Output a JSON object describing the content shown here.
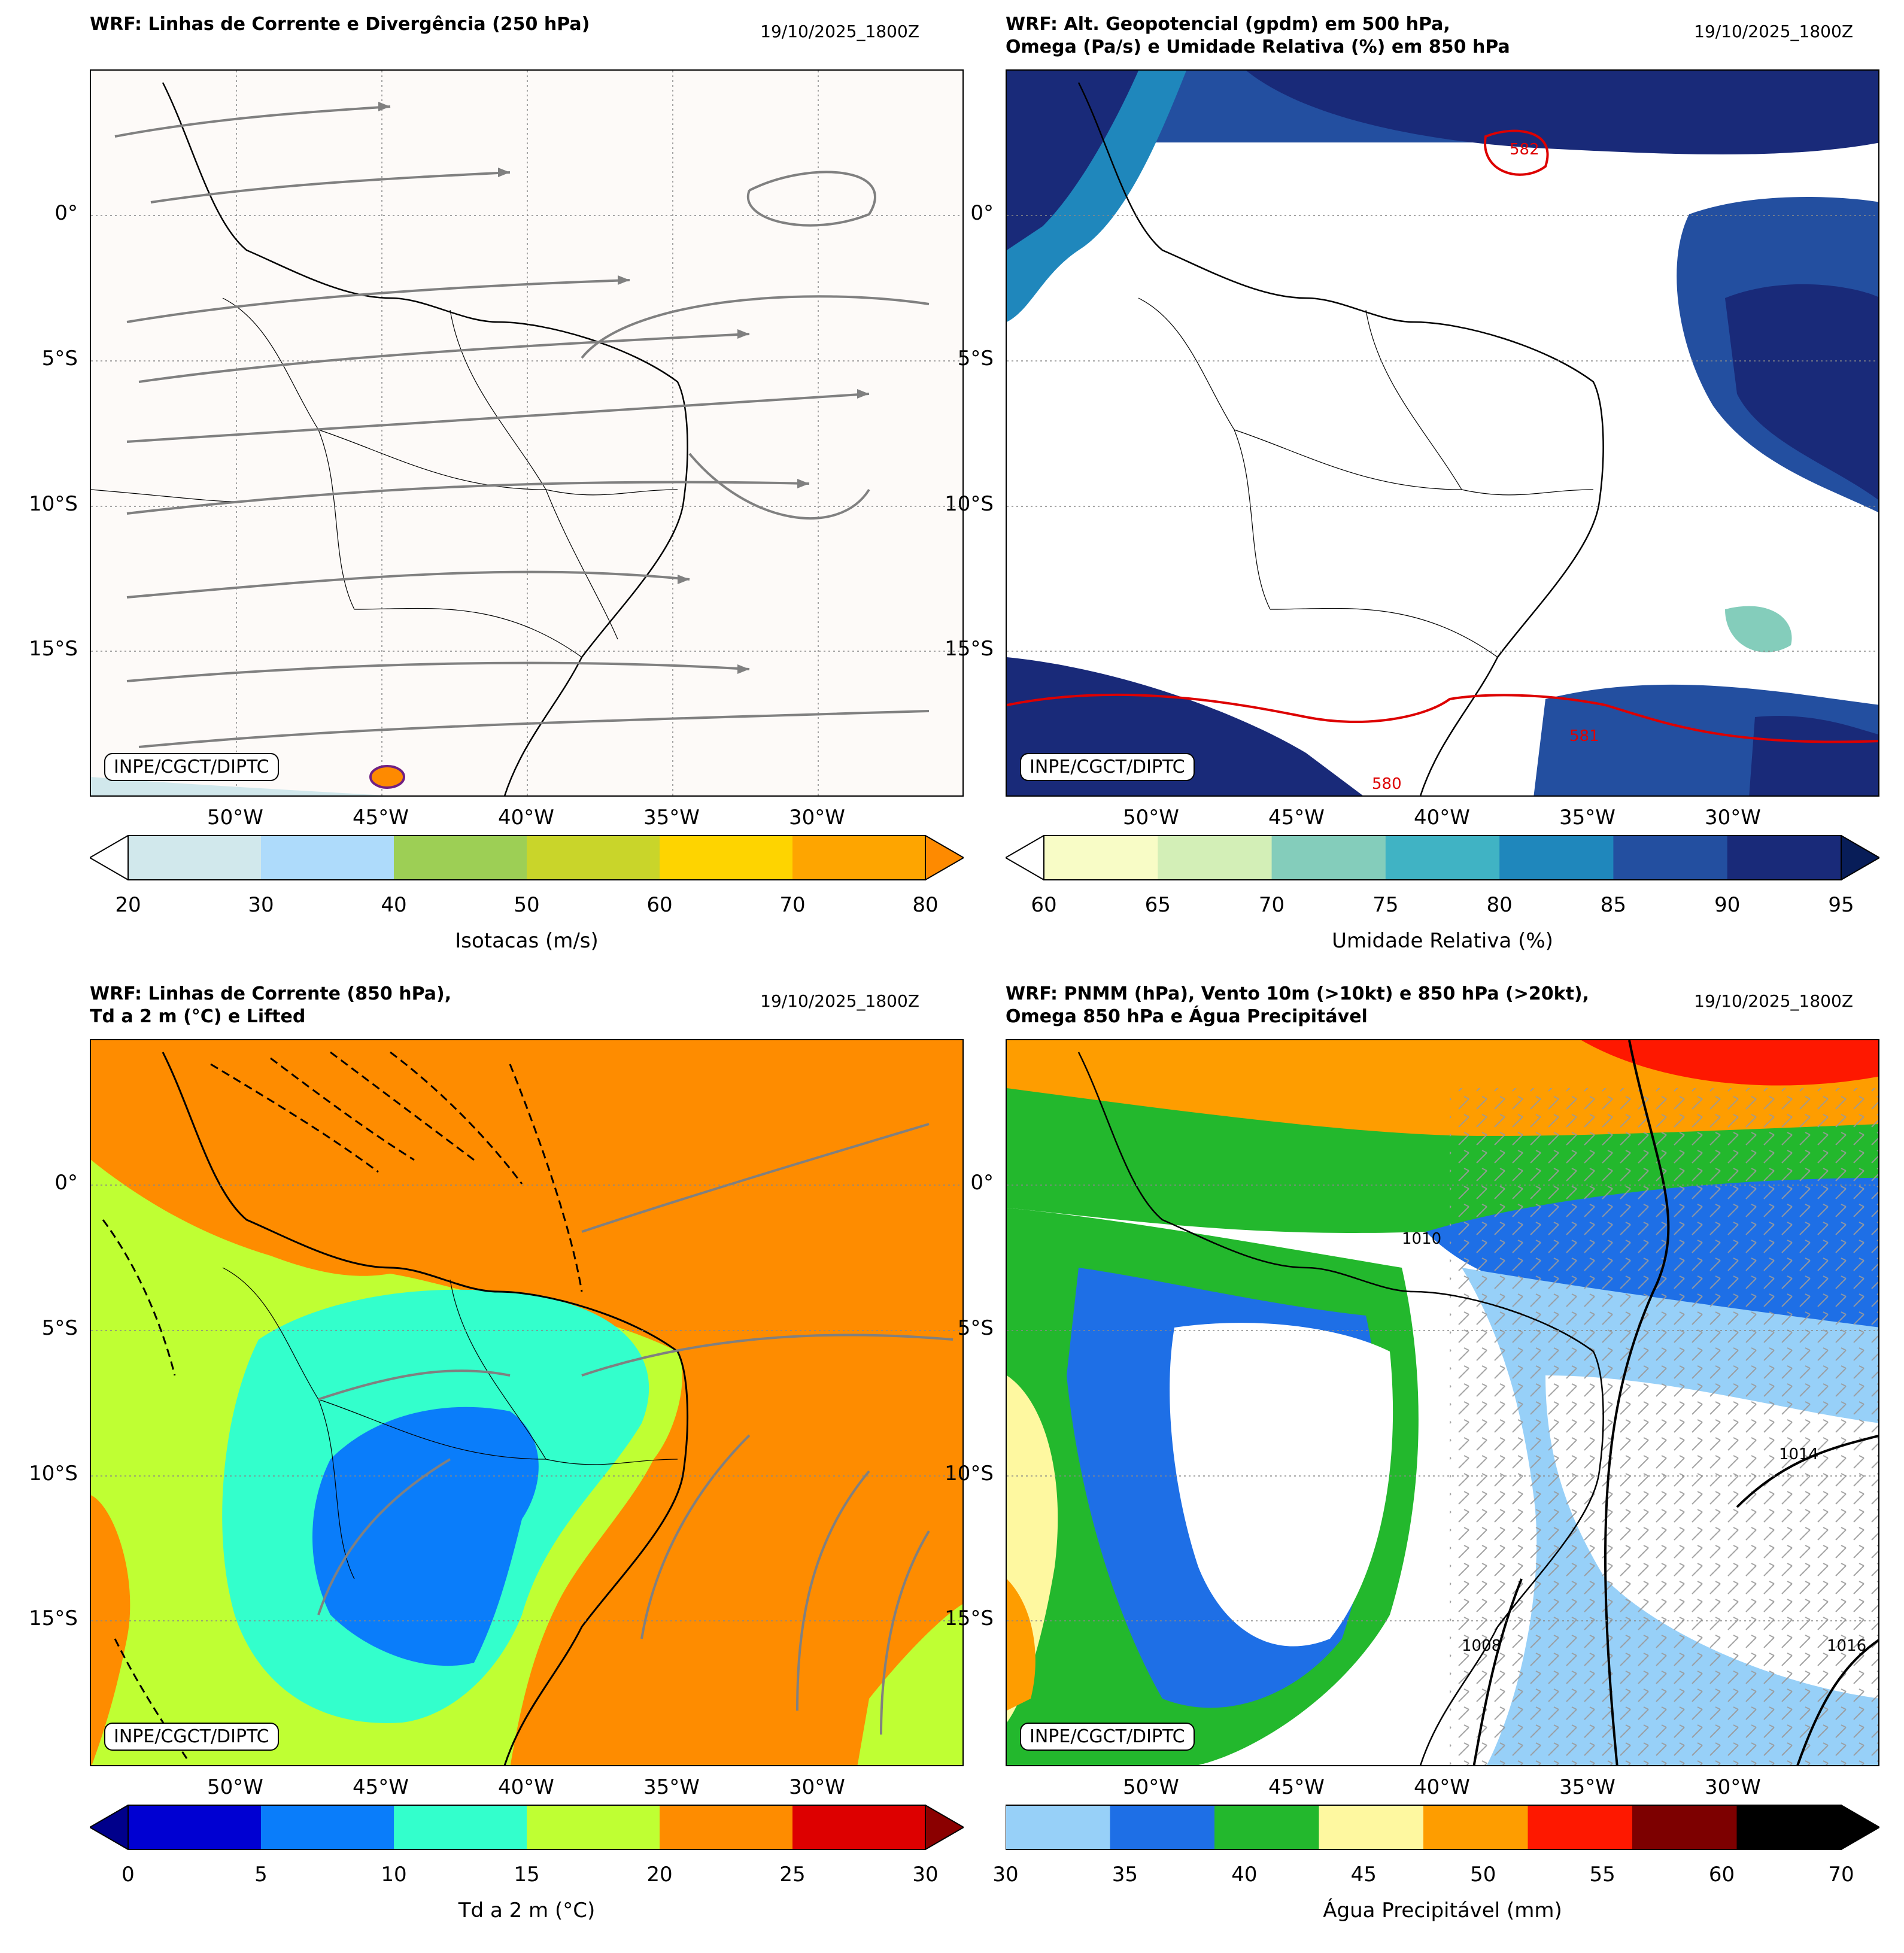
{
  "credit": "INPE/CGCT/DIPTC",
  "lat_labels": [
    "0°",
    "5°S",
    "10°S",
    "15°S"
  ],
  "lon_labels": [
    "50°W",
    "45°W",
    "40°W",
    "35°W",
    "30°W"
  ],
  "panels": [
    {
      "title": "WRF: Linhas de Corrente e Divergência (250 hPa)",
      "date": "19/10/2025_1800Z",
      "colorbar": {
        "label": "Isotacas (m/s)",
        "ticks": [
          "20",
          "30",
          "40",
          "50",
          "60",
          "70",
          "80"
        ],
        "colors": [
          "#d1e8ec",
          "#aedbfb",
          "#9dcf55",
          "#c9d52a",
          "#fed400",
          "#fea500"
        ],
        "extend": "both",
        "under": "#ffffff",
        "over": "#fe8a00"
      },
      "map": {
        "background": "#fdfaf8",
        "style": "streamlines"
      }
    },
    {
      "title": "WRF: Alt. Geopotencial (gpdm) em 500 hPa,\nOmega (Pa/s) e Umidade Relativa (%) em 850 hPa",
      "date": "19/10/2025_1800Z",
      "colorbar": {
        "label": "Umidade Relativa (%)",
        "ticks": [
          "60",
          "65",
          "70",
          "75",
          "80",
          "85",
          "90",
          "95"
        ],
        "colors": [
          "#f8fcc6",
          "#d3efb7",
          "#84cdbb",
          "#40b3c4",
          "#1f87bc",
          "#234fa0",
          "#192a79"
        ],
        "extend": "both",
        "under": "#ffffff",
        "over": "#081d58"
      },
      "map": {
        "background": "#ffffff",
        "style": "humidity",
        "contour_labels": [
          "582",
          "580",
          "581"
        ]
      }
    },
    {
      "title": "WRF: Linhas de Corrente (850 hPa),\nTd a 2 m (°C) e Lifted",
      "date": "19/10/2025_1800Z",
      "colorbar": {
        "label": "Td a 2 m (°C)",
        "ticks": [
          "0",
          "5",
          "10",
          "15",
          "20",
          "25",
          "30"
        ],
        "colors": [
          "#0000d2",
          "#0a7dfa",
          "#33ffcc",
          "#bfff33",
          "#fe8c00",
          "#dd0000"
        ],
        "extend": "both",
        "under": "#00008b",
        "over": "#8b0000"
      },
      "map": {
        "background": "#fe8c00",
        "style": "dewpoint"
      }
    },
    {
      "title": "WRF: PNMM (hPa), Vento 10m (>10kt) e 850 hPa (>20kt),\nOmega 850 hPa e Água Precipitável",
      "date": "19/10/2025_1800Z",
      "colorbar": {
        "label": "Água Precipitável (mm)",
        "ticks": [
          "30",
          "35",
          "40",
          "45",
          "50",
          "55",
          "60",
          "70"
        ],
        "colors": [
          "#97d0f8",
          "#1e6fe6",
          "#23b82d",
          "#fef8a0",
          "#fe9d00",
          "#fe1800",
          "#7d0000",
          "#000000"
        ],
        "extend": "max",
        "over": "#000000"
      },
      "map": {
        "background": "#ffffff",
        "style": "precip",
        "contour_labels": [
          "1014",
          "1016",
          "1008",
          "1010"
        ]
      }
    }
  ]
}
